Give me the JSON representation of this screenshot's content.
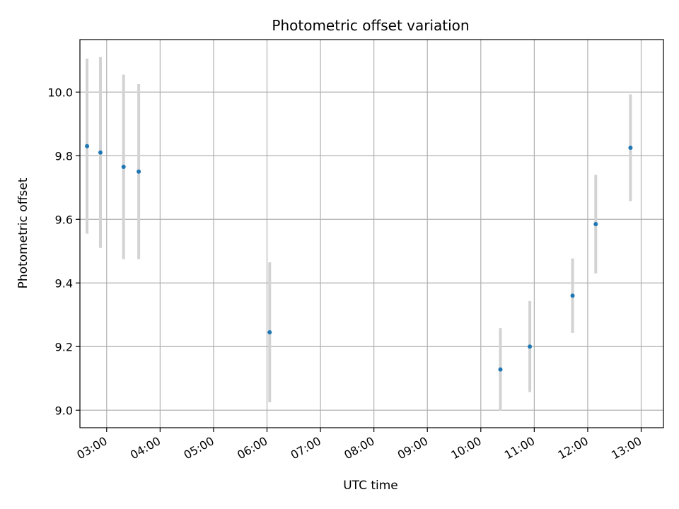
{
  "chart_data": {
    "type": "scatter",
    "title": "Photometric offset variation",
    "xlabel": "UTC time",
    "ylabel": "Photometric offset",
    "xlim": [
      "02:30",
      "13:25"
    ],
    "ylim": [
      8.945,
      10.165
    ],
    "grid": true,
    "x_ticks": [
      "03:00",
      "04:00",
      "05:00",
      "06:00",
      "07:00",
      "08:00",
      "09:00",
      "10:00",
      "11:00",
      "12:00",
      "13:00"
    ],
    "y_ticks": [
      "9.0",
      "9.2",
      "9.4",
      "9.6",
      "9.8",
      "10.0"
    ],
    "point_color": "#1f77b4",
    "errorbar_color": "#d3d3d3",
    "points": [
      {
        "x": "02:38",
        "y": 9.83,
        "err": 0.275
      },
      {
        "x": "02:53",
        "y": 9.81,
        "err": 0.3
      },
      {
        "x": "03:19",
        "y": 9.765,
        "err": 0.29
      },
      {
        "x": "03:36",
        "y": 9.75,
        "err": 0.275
      },
      {
        "x": "06:03",
        "y": 9.245,
        "err": 0.22
      },
      {
        "x": "10:22",
        "y": 9.128,
        "err": 0.13
      },
      {
        "x": "10:55",
        "y": 9.2,
        "err": 0.143
      },
      {
        "x": "11:43",
        "y": 9.36,
        "err": 0.117
      },
      {
        "x": "12:09",
        "y": 9.585,
        "err": 0.155
      },
      {
        "x": "12:48",
        "y": 9.825,
        "err": 0.168
      }
    ]
  }
}
